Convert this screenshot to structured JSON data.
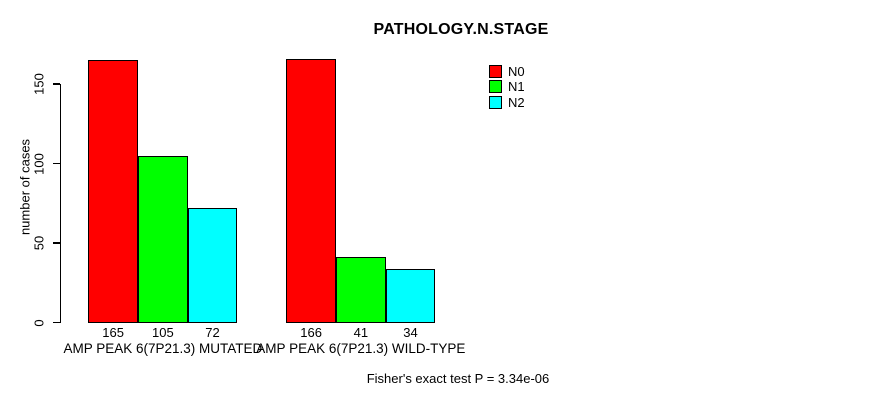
{
  "chart_data": {
    "type": "bar",
    "title": "PATHOLOGY.N.STAGE",
    "ylabel": "number of cases",
    "xlabel": "",
    "ylim": [
      0,
      174
    ],
    "yticks": [
      0,
      50,
      100,
      150
    ],
    "grid": false,
    "bar_value_labels_shown": true,
    "legend": {
      "position": "top-right",
      "entries": [
        {
          "name": "N0",
          "color": "#FF0000"
        },
        {
          "name": "N1",
          "color": "#00FF00"
        },
        {
          "name": "N2",
          "color": "#00FFFF"
        }
      ]
    },
    "categories": [
      "AMP PEAK 6(7P21.3) MUTATED",
      "AMP PEAK 6(7P21.3) WILD-TYPE"
    ],
    "series": [
      {
        "name": "N0",
        "color": "#FF0000",
        "values": [
          165,
          166
        ]
      },
      {
        "name": "N1",
        "color": "#00FF00",
        "values": [
          105,
          41
        ]
      },
      {
        "name": "N2",
        "color": "#00FFFF",
        "values": [
          72,
          34
        ]
      }
    ],
    "annotation": "Fisher's exact test P = 3.34e-06"
  }
}
